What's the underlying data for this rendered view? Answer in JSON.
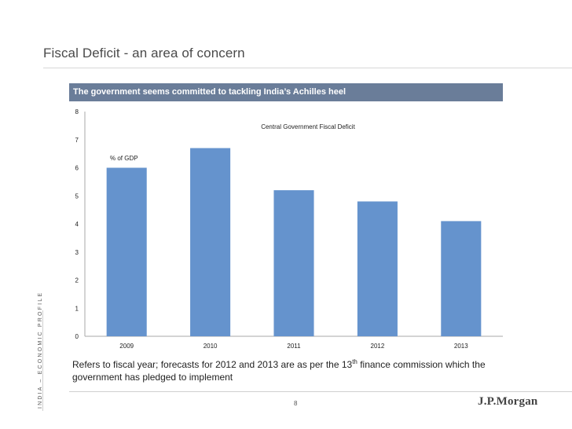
{
  "page": {
    "title": "Fiscal Deficit - an area of concern",
    "side_label": "INDIA – ECONOMIC PROFILE",
    "banner": "The government seems committed to tackling India’s Achilles heel",
    "footnote": {
      "part1": "Refers to fiscal year; forecasts for 2012 and 2013 are as per the 13",
      "sup": "th",
      "part2": " finance commission which the government has pledged to implement"
    },
    "page_number": "8",
    "logo": "J.P.Morgan"
  },
  "colors": {
    "bar": "#6593cd",
    "banner": "#6a7d99",
    "axis": "#aaaaaa"
  },
  "chart_data": {
    "type": "bar",
    "title": "Central Government Fiscal Deficit",
    "ylabel": "% of GDP",
    "xlabel": "",
    "categories": [
      "2009",
      "2010",
      "2011",
      "2012",
      "2013"
    ],
    "values": [
      6.0,
      6.7,
      5.2,
      4.8,
      4.1
    ],
    "yticks": [
      "0",
      "1",
      "2",
      "3",
      "4",
      "5",
      "6",
      "7",
      "8"
    ],
    "ylim": [
      0,
      8
    ],
    "grid": false,
    "legend": "none"
  }
}
